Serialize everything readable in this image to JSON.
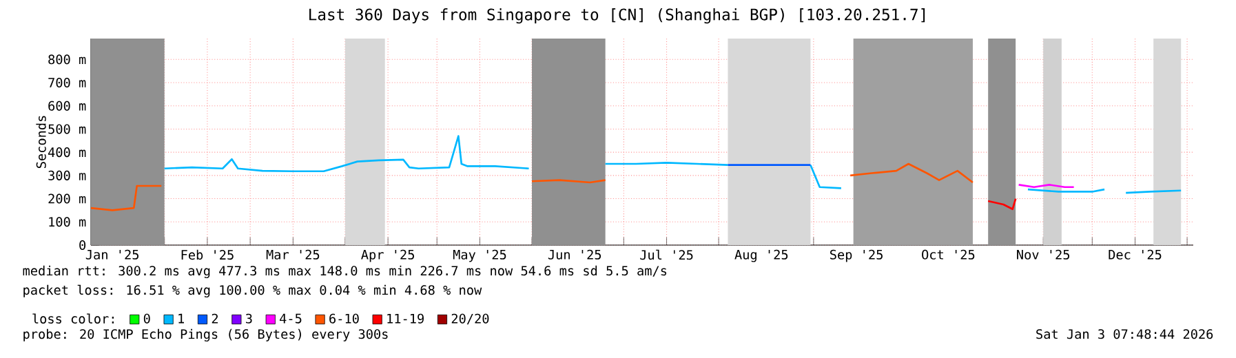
{
  "chart_data": {
    "type": "line",
    "title": "Last 360 Days from Singapore to [CN] (Shanghai BGP) [103.20.251.7]",
    "ylabel": "Seconds",
    "xlim": [
      "2025-01-08",
      "2026-01-03"
    ],
    "ylim": [
      0,
      890
    ],
    "xticks": [
      {
        "value": "2025-01-15",
        "label": "Jan '25"
      },
      {
        "value": "2025-02-01",
        "label": null
      },
      {
        "value": "2025-02-15",
        "label": "Feb '25"
      },
      {
        "value": "2025-03-01",
        "label": null
      },
      {
        "value": "2025-03-15",
        "label": "Mar '25"
      },
      {
        "value": "2025-04-01",
        "label": null
      },
      {
        "value": "2025-04-15",
        "label": "Apr '25"
      },
      {
        "value": "2025-05-01",
        "label": null
      },
      {
        "value": "2025-05-15",
        "label": "May '25"
      },
      {
        "value": "2025-06-01",
        "label": null
      },
      {
        "value": "2025-06-15",
        "label": "Jun '25"
      },
      {
        "value": "2025-07-01",
        "label": null
      },
      {
        "value": "2025-07-15",
        "label": "Jul '25"
      },
      {
        "value": "2025-08-01",
        "label": null
      },
      {
        "value": "2025-08-15",
        "label": "Aug '25"
      },
      {
        "value": "2025-09-01",
        "label": null
      },
      {
        "value": "2025-09-15",
        "label": "Sep '25"
      },
      {
        "value": "2025-10-01",
        "label": null
      },
      {
        "value": "2025-10-15",
        "label": "Oct '25"
      },
      {
        "value": "2025-11-01",
        "label": null
      },
      {
        "value": "2025-11-15",
        "label": "Nov '25"
      },
      {
        "value": "2025-12-01",
        "label": null
      },
      {
        "value": "2025-12-15",
        "label": "Dec '25"
      },
      {
        "value": "2026-01-01",
        "label": null
      }
    ],
    "yticks": [
      {
        "value": 0,
        "label": "0"
      },
      {
        "value": 100,
        "label": "100 m"
      },
      {
        "value": 200,
        "label": "200 m"
      },
      {
        "value": 300,
        "label": "300 m"
      },
      {
        "value": 400,
        "label": "400 m"
      },
      {
        "value": 500,
        "label": "500 m"
      },
      {
        "value": 600,
        "label": "600 m"
      },
      {
        "value": 700,
        "label": "700 m"
      },
      {
        "value": 800,
        "label": "800 m"
      }
    ],
    "grid": true,
    "legend": "bottom",
    "legend_title": "loss color:",
    "series": [
      {
        "name": "0",
        "color": "#00ff00"
      },
      {
        "name": "1",
        "color": "#00b8ff",
        "x": [
          "2025-02-01",
          "2025-02-10",
          "2025-02-20",
          "2025-02-23",
          "2025-02-25",
          "2025-03-05",
          "2025-03-15",
          "2025-03-25",
          "2025-03-31",
          "2025-04-05",
          "2025-04-12",
          "2025-04-20",
          "2025-04-22",
          "2025-04-25",
          "2025-05-05",
          "2025-05-08",
          "2025-05-09",
          "2025-05-11",
          "2025-05-20",
          "2025-05-31",
          "2025-06-01",
          "2025-06-25",
          "2025-07-05",
          "2025-07-15",
          "2025-07-25",
          "2025-08-04",
          "2025-08-05",
          "2025-08-31",
          "2025-09-03",
          "2025-09-10",
          "2025-09-12",
          "2025-11-10",
          "2025-11-20",
          "2025-12-01",
          "2025-12-05",
          "2025-12-07",
          "2025-12-12",
          "2025-12-20",
          "2025-12-30"
        ],
        "values": [
          330,
          335,
          330,
          370,
          330,
          320,
          318,
          318,
          340,
          360,
          365,
          368,
          335,
          330,
          335,
          470,
          350,
          340,
          340,
          330,
          null,
          350,
          350,
          355,
          350,
          345,
          null,
          345,
          250,
          245,
          null,
          240,
          230,
          230,
          240,
          null,
          225,
          230,
          235
        ]
      },
      {
        "name": "2",
        "color": "#0059ff",
        "x": [
          "2025-08-04",
          "2025-08-15",
          "2025-08-31"
        ],
        "values": [
          345,
          345,
          345
        ]
      },
      {
        "name": "3",
        "color": "#8000ff"
      },
      {
        "name": "4-5",
        "color": "#ff00ff",
        "x": [
          "2025-11-07",
          "2025-11-12",
          "2025-11-17",
          "2025-11-22",
          "2025-11-25"
        ],
        "values": [
          260,
          250,
          260,
          250,
          250
        ]
      },
      {
        "name": "6-10",
        "color": "#ff5500",
        "x": [
          "2025-01-08",
          "2025-01-15",
          "2025-01-22",
          "2025-01-23",
          "2025-01-31",
          "2025-02-01",
          "2025-06-01",
          "2025-06-10",
          "2025-06-20",
          "2025-06-25",
          "2025-06-26",
          "2025-09-13",
          "2025-09-20",
          "2025-09-28",
          "2025-10-02",
          "2025-10-08",
          "2025-10-12",
          "2025-10-18",
          "2025-10-23"
        ],
        "values": [
          160,
          150,
          160,
          255,
          255,
          null,
          275,
          280,
          270,
          280,
          null,
          300,
          310,
          320,
          350,
          310,
          280,
          320,
          270
        ]
      },
      {
        "name": "11-19",
        "color": "#ff0000",
        "x": [
          "2025-10-28",
          "2025-11-02",
          "2025-11-05",
          "2025-11-06"
        ],
        "values": [
          190,
          175,
          155,
          200
        ]
      },
      {
        "name": "20/20",
        "color": "#a00000"
      }
    ],
    "bands": [
      {
        "axis": "x",
        "from": "2025-01-08",
        "to": "2025-02-01",
        "color": "#909090"
      },
      {
        "axis": "x",
        "from": "2025-04-01",
        "to": "2025-04-14",
        "color": "#d8d8d8"
      },
      {
        "axis": "x",
        "from": "2025-06-01",
        "to": "2025-06-25",
        "color": "#909090"
      },
      {
        "axis": "x",
        "from": "2025-08-04",
        "to": "2025-08-31",
        "color": "#d8d8d8"
      },
      {
        "axis": "x",
        "from": "2025-09-14",
        "to": "2025-10-23",
        "color": "#a0a0a0"
      },
      {
        "axis": "x",
        "from": "2025-10-28",
        "to": "2025-11-06",
        "color": "#909090"
      },
      {
        "axis": "x",
        "from": "2025-11-15",
        "to": "2025-11-21",
        "color": "#d0d0d0"
      },
      {
        "axis": "x",
        "from": "2025-12-21",
        "to": "2025-12-30",
        "color": "#d8d8d8"
      }
    ],
    "annotations": [
      "median rtt:  300.2 ms avg  477.3 ms max  148.0 ms min  226.7 ms now  54.6 ms sd  5.5   am/s",
      "packet loss: 16.51 % avg  100.00 % max  0.04 % min  4.68 % now",
      "probe:       20 ICMP Echo Pings (56 Bytes) every 300s",
      "Sat Jan  3 07:48:44 2026"
    ]
  }
}
